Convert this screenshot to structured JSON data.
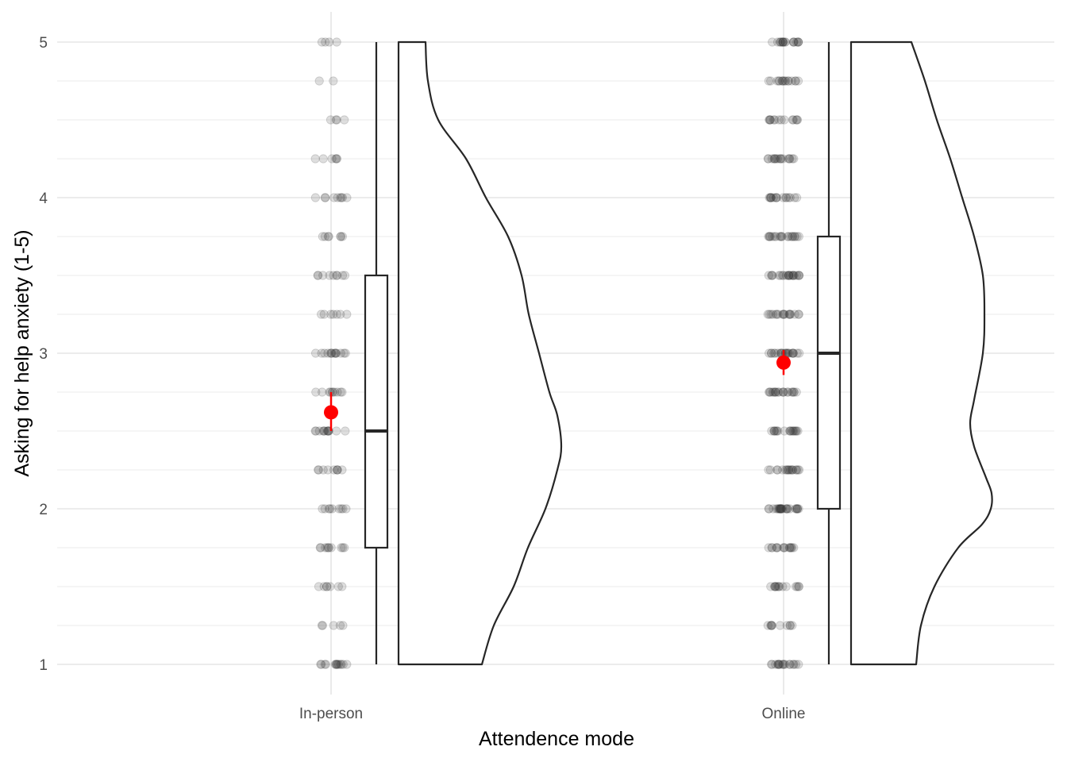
{
  "chart_data": {
    "type": "raincloud",
    "xlabel": "Attendence mode",
    "ylabel": "Asking for help anxiety (1-5)",
    "ylim": [
      0.9,
      5.2
    ],
    "yticks": [
      1,
      2,
      3,
      4,
      5
    ],
    "grid": true,
    "categories": [
      "In-person",
      "Online"
    ],
    "groups": [
      {
        "category": "In-person",
        "box": {
          "min": 1,
          "q1": 1.75,
          "median": 2.5,
          "q3": 3.5,
          "max": 5
        },
        "mean": 2.62,
        "mean_ci": [
          2.5,
          2.75
        ],
        "density": [
          [
            1.0,
            0.105
          ],
          [
            1.25,
            0.12
          ],
          [
            1.5,
            0.145
          ],
          [
            1.75,
            0.163
          ],
          [
            2.0,
            0.185
          ],
          [
            2.25,
            0.2
          ],
          [
            2.4,
            0.205
          ],
          [
            2.6,
            0.2
          ],
          [
            2.75,
            0.19
          ],
          [
            3.0,
            0.177
          ],
          [
            3.25,
            0.164
          ],
          [
            3.5,
            0.155
          ],
          [
            3.75,
            0.138
          ],
          [
            4.0,
            0.11
          ],
          [
            4.25,
            0.085
          ],
          [
            4.5,
            0.05
          ],
          [
            4.75,
            0.037
          ],
          [
            5.0,
            0.034
          ]
        ],
        "points": [
          {
            "y": 1.0,
            "count": 14
          },
          {
            "y": 1.25,
            "count": 5
          },
          {
            "y": 1.5,
            "count": 7
          },
          {
            "y": 1.75,
            "count": 10
          },
          {
            "y": 2.0,
            "count": 9
          },
          {
            "y": 2.25,
            "count": 9
          },
          {
            "y": 2.5,
            "count": 13
          },
          {
            "y": 2.75,
            "count": 10
          },
          {
            "y": 3.0,
            "count": 14
          },
          {
            "y": 3.25,
            "count": 7
          },
          {
            "y": 3.5,
            "count": 9
          },
          {
            "y": 3.75,
            "count": 7
          },
          {
            "y": 4.0,
            "count": 9
          },
          {
            "y": 4.25,
            "count": 6
          },
          {
            "y": 4.5,
            "count": 4
          },
          {
            "y": 4.75,
            "count": 2
          },
          {
            "y": 5.0,
            "count": 4
          }
        ]
      },
      {
        "category": "Online",
        "box": {
          "min": 1,
          "q1": 2.0,
          "median": 3.0,
          "q3": 3.75,
          "max": 5
        },
        "mean": 2.94,
        "mean_ci": [
          2.86,
          3.02
        ],
        "density": [
          [
            1.0,
            0.082
          ],
          [
            1.25,
            0.088
          ],
          [
            1.5,
            0.105
          ],
          [
            1.75,
            0.135
          ],
          [
            1.9,
            0.165
          ],
          [
            2.0,
            0.176
          ],
          [
            2.1,
            0.177
          ],
          [
            2.2,
            0.17
          ],
          [
            2.4,
            0.155
          ],
          [
            2.55,
            0.15
          ],
          [
            2.7,
            0.155
          ],
          [
            3.0,
            0.166
          ],
          [
            3.25,
            0.168
          ],
          [
            3.5,
            0.166
          ],
          [
            3.75,
            0.155
          ],
          [
            4.0,
            0.14
          ],
          [
            4.25,
            0.125
          ],
          [
            4.5,
            0.108
          ],
          [
            4.75,
            0.093
          ],
          [
            5.0,
            0.076
          ]
        ],
        "points": [
          {
            "y": 1.0,
            "count": 18
          },
          {
            "y": 1.25,
            "count": 10
          },
          {
            "y": 1.5,
            "count": 14
          },
          {
            "y": 1.75,
            "count": 15
          },
          {
            "y": 2.0,
            "count": 26
          },
          {
            "y": 2.25,
            "count": 18
          },
          {
            "y": 2.5,
            "count": 18
          },
          {
            "y": 2.75,
            "count": 20
          },
          {
            "y": 3.0,
            "count": 22
          },
          {
            "y": 3.25,
            "count": 18
          },
          {
            "y": 3.5,
            "count": 22
          },
          {
            "y": 3.75,
            "count": 20
          },
          {
            "y": 4.0,
            "count": 16
          },
          {
            "y": 4.25,
            "count": 17
          },
          {
            "y": 4.5,
            "count": 14
          },
          {
            "y": 4.75,
            "count": 16
          },
          {
            "y": 5.0,
            "count": 18
          }
        ]
      }
    ],
    "colors": {
      "mean_marker": "#ff0000",
      "points": "#333333",
      "box_stroke": "#262626",
      "grid": "#e5e5e5"
    }
  }
}
